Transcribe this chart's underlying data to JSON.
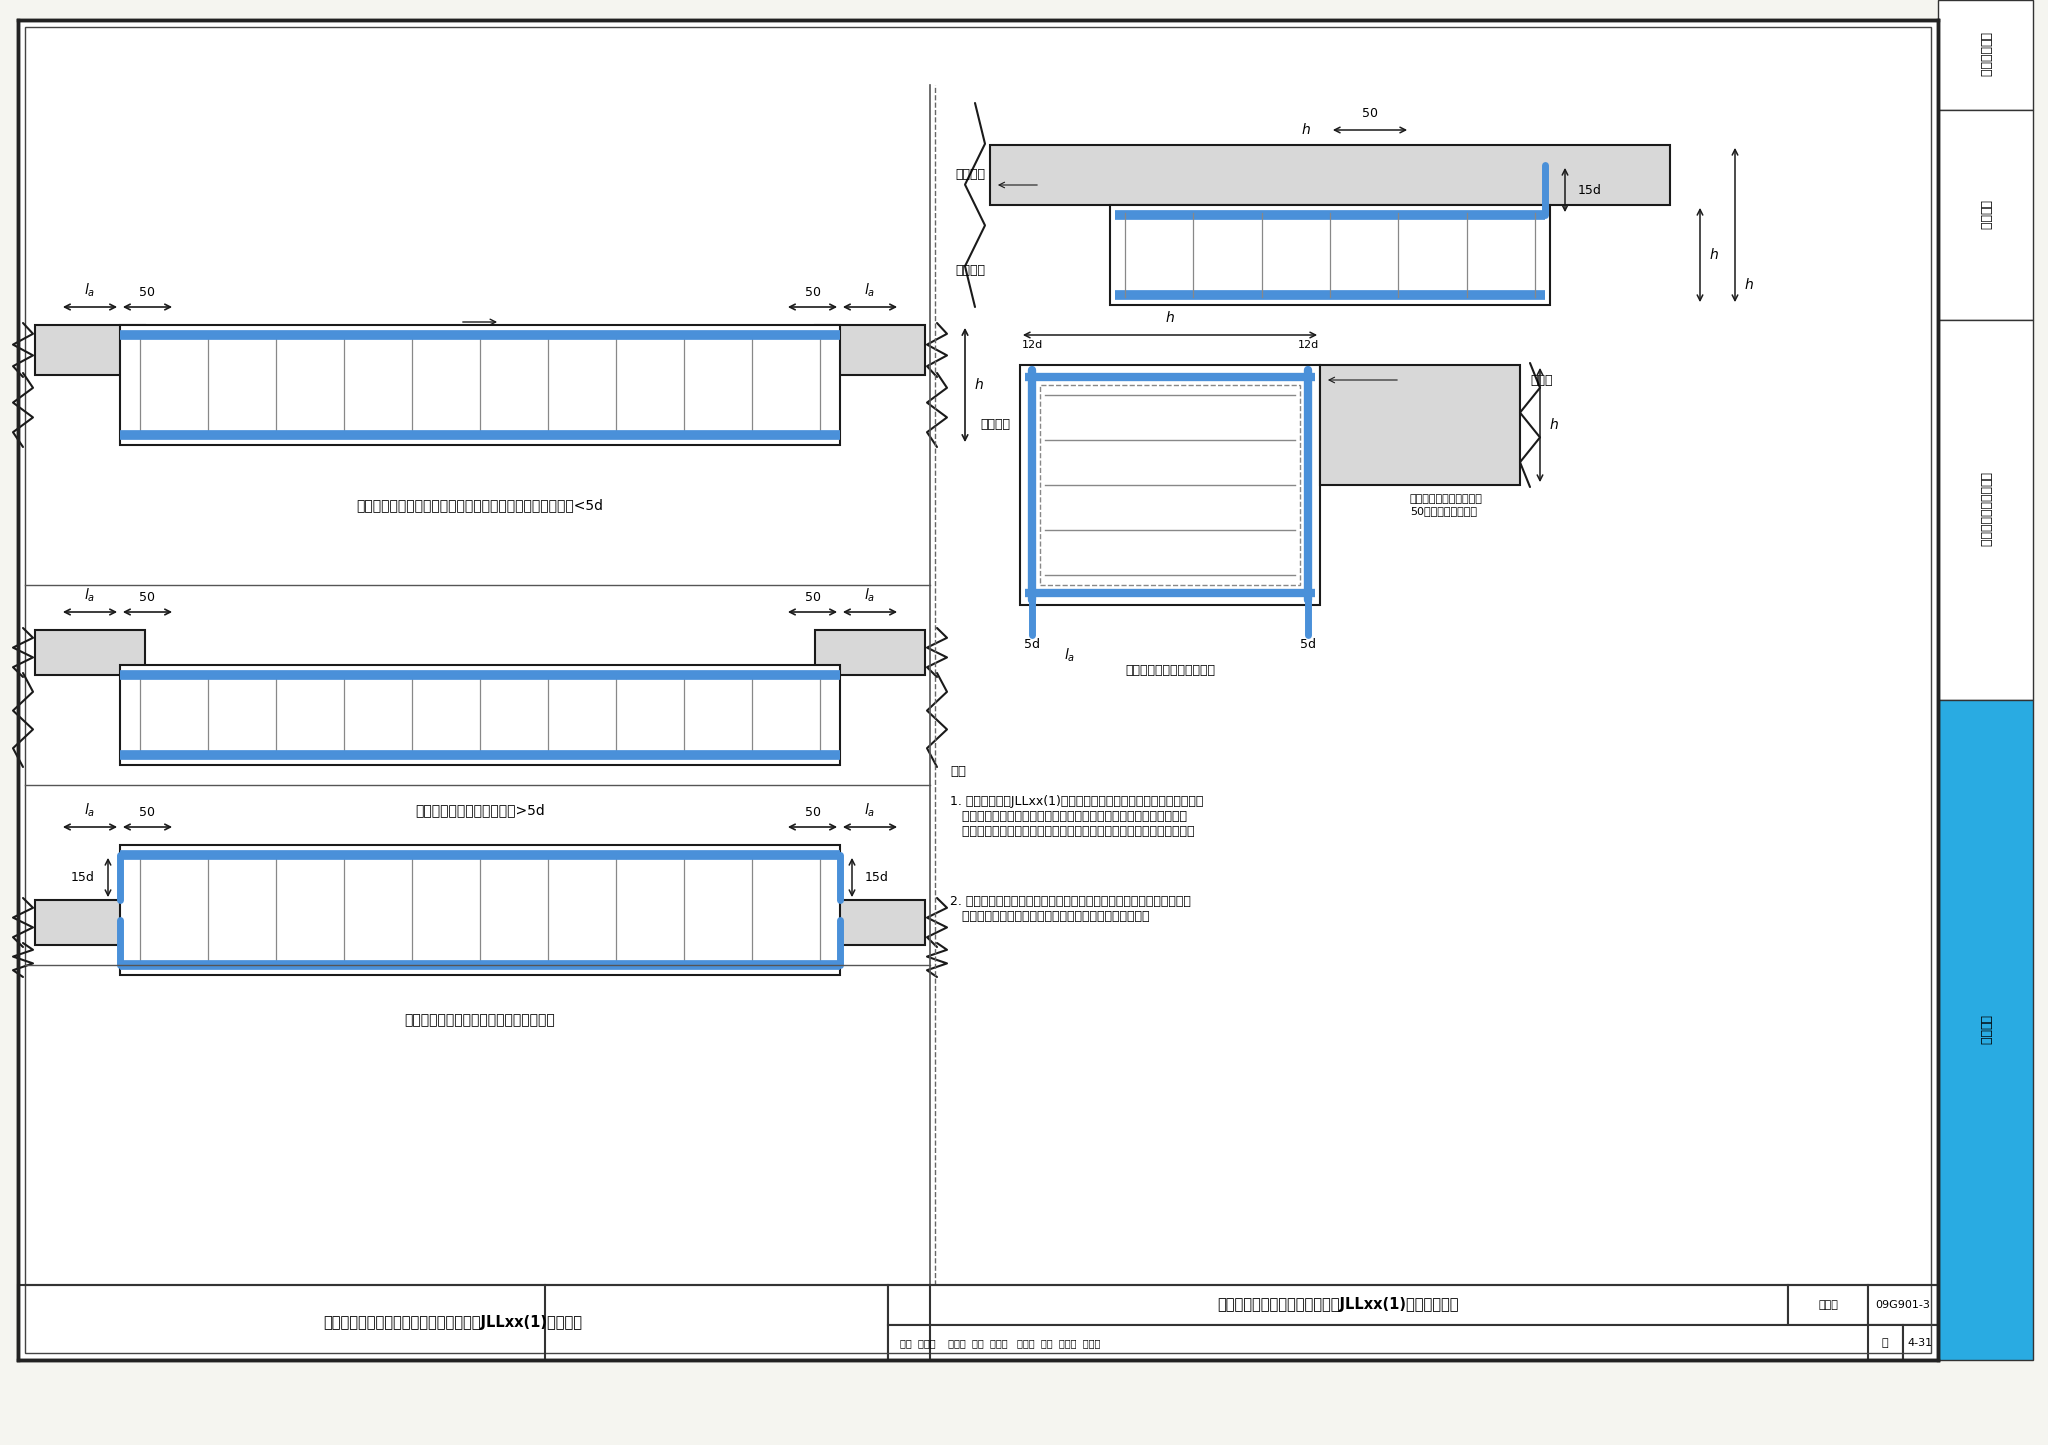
{
  "title_left": "从基础边缘开始进行锚固的单跨基础连梁JLLxx(1)钢筋构造",
  "title_right": "单跨且无外伸或悬挑的基础连梁JLLxx(1)钢筋排布构造",
  "atlas_number": "09G901-3",
  "page": "4-31",
  "label_tushu": "图集号",
  "label_page": "页",
  "caption1": "基础连梁顶面与基础顶面一平或基础连梁顶面低于基础顶面<5d",
  "caption2": "基础连梁顶面低于基础顶面>5d",
  "caption3": "基础连梁顶面高于但梁底面低于基础顶面",
  "caption_right1": "杯口顶面",
  "caption_right2": "杯口侧壁",
  "caption_right3": "基础梁",
  "caption_right4": "杯口顶面",
  "caption_right5": "基础连梁底面高于基础顶面",
  "note_title": "注：",
  "note1": "1. 单跨基础连梁JLLxx(1)的锚固支座，可为普通独立基础、杯口独立\n   基础、条形基础、桩基独立承台、承台梁以及大直径挖孔桩顶等。当\n   单跨基础连梁的左右支座不同时，应根据具体情况交叉采用本图构造。",
  "note2": "2. 当具体设计注明单跨基础连梁的纵向钢筋锚固到框架柱截面投影范围\n   时，应按本图集中多跨基础连梁端支座的钢筋排布构造。",
  "sidebar_texts": [
    "一般构造要求",
    "筏形基础",
    "箱形基础和地下室结构",
    "桩基承台"
  ],
  "bg_color": "#f5f5f0",
  "main_bg": "#ffffff",
  "blue_fill": "#4a90d9",
  "steel_blue": "#5b9bd5",
  "dim_color": "#222222",
  "line_color": "#1a1a1a",
  "sidebar_blue": "#29abe2"
}
